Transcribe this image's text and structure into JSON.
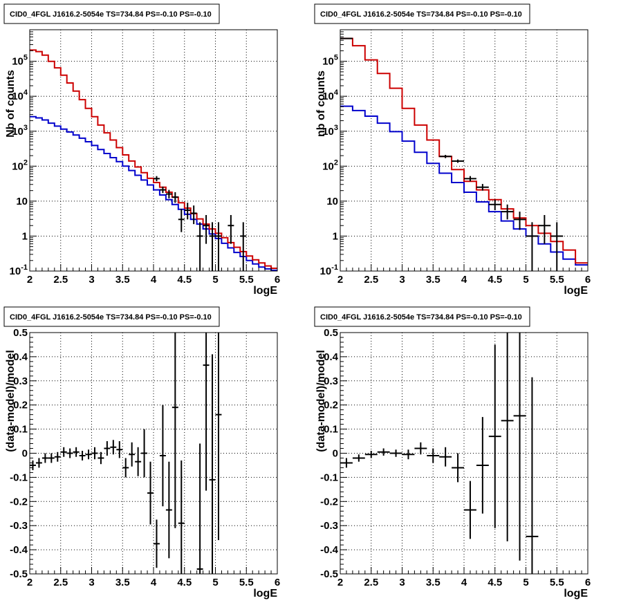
{
  "chart_data": [
    {
      "type": "histogram",
      "title": "CID0_4FGL J1616.2-5054e TS=734.84 PS=-0.10 PS=-0.10",
      "xlabel": "logE",
      "ylabel": "Nb of counts",
      "xlim": [
        2,
        6
      ],
      "ylim": [
        0.1,
        800000
      ],
      "ylog": true,
      "grid": true,
      "xticks": [
        "2",
        "2.5",
        "3",
        "3.5",
        "4",
        "4.5",
        "5",
        "5.5",
        "6"
      ],
      "yticks": [
        "10^-1",
        "1",
        "10",
        "10^2",
        "10^3",
        "10^4",
        "10^5"
      ],
      "bin_edges": [
        2.0,
        2.1,
        2.2,
        2.3,
        2.4,
        2.5,
        2.6,
        2.7,
        2.8,
        2.9,
        3.0,
        3.1,
        3.2,
        3.3,
        3.4,
        3.5,
        3.6,
        3.7,
        3.8,
        3.9,
        4.0,
        4.1,
        4.2,
        4.3,
        4.4,
        4.5,
        4.6,
        4.7,
        4.8,
        4.9,
        5.0,
        5.1,
        5.2,
        5.3,
        5.4,
        5.5,
        5.6,
        5.7,
        5.8,
        5.9,
        6.0
      ],
      "series": [
        {
          "color": "#0000cc",
          "values": [
            2600,
            2400,
            2100,
            1700,
            1400,
            1150,
            950,
            780,
            630,
            500,
            390,
            300,
            230,
            175,
            135,
            100,
            75,
            55,
            40,
            29,
            21,
            15,
            11,
            8,
            5.8,
            4.2,
            3.0,
            2.2,
            1.6,
            1.15,
            0.85,
            0.62,
            0.46,
            0.34,
            0.26,
            0.2,
            0.16,
            0.13,
            0.115,
            0.105
          ]
        },
        {
          "color": "#cc0000",
          "values": [
            210000,
            190000,
            150000,
            100000,
            65000,
            40000,
            24000,
            14000,
            8000,
            4500,
            2600,
            1500,
            900,
            560,
            340,
            210,
            140,
            95,
            65,
            45,
            34,
            25,
            18,
            13,
            9,
            6.3,
            4.4,
            3.1,
            2.2,
            1.6,
            1.2,
            0.9,
            0.65,
            0.48,
            0.36,
            0.27,
            0.21,
            0.17,
            0.14,
            0.12
          ]
        }
      ],
      "data_points": [
        {
          "x": 4.05,
          "y": 44,
          "lo": 37,
          "hi": 52
        },
        {
          "x": 4.15,
          "y": 21,
          "lo": 17,
          "hi": 26
        },
        {
          "x": 4.25,
          "y": 16,
          "lo": 12,
          "hi": 21
        },
        {
          "x": 4.35,
          "y": 13,
          "lo": 9,
          "hi": 18
        },
        {
          "x": 4.45,
          "y": 3,
          "lo": 1.3,
          "hi": 6
        },
        {
          "x": 4.55,
          "y": 5.5,
          "lo": 3.0,
          "hi": 9
        },
        {
          "x": 4.65,
          "y": 4.5,
          "lo": 2.2,
          "hi": 7.5
        },
        {
          "x": 4.75,
          "y": 1,
          "lo": 0.1,
          "hi": 2.5
        },
        {
          "x": 4.85,
          "y": 2,
          "lo": 0.6,
          "hi": 4
        },
        {
          "x": 4.95,
          "y": 1,
          "lo": 0.1,
          "hi": 2.5
        },
        {
          "x": 5.05,
          "y": 1,
          "lo": 0.1,
          "hi": 2.5
        },
        {
          "x": 5.25,
          "y": 2,
          "lo": 0.6,
          "hi": 4
        },
        {
          "x": 5.45,
          "y": 1,
          "lo": 0.1,
          "hi": 2.5
        }
      ]
    },
    {
      "type": "histogram",
      "title": "CID0_4FGL J1616.2-5054e TS=734.84 PS=-0.10 PS=-0.10",
      "xlabel": "logE",
      "ylabel": "nb of counts",
      "xlim": [
        2,
        6
      ],
      "ylim": [
        0.1,
        800000
      ],
      "ylog": true,
      "grid": true,
      "xticks": [
        "2",
        "2.5",
        "3",
        "3.5",
        "4",
        "4.5",
        "5",
        "5.5",
        "6"
      ],
      "yticks": [
        "10^-1",
        "1",
        "10",
        "10^2",
        "10^3",
        "10^4",
        "10^5"
      ],
      "bin_edges": [
        2.0,
        2.2,
        2.4,
        2.6,
        2.8,
        3.0,
        3.2,
        3.4,
        3.6,
        3.8,
        4.0,
        4.2,
        4.4,
        4.6,
        4.8,
        5.0,
        5.2,
        5.4,
        5.6,
        5.8,
        6.0
      ],
      "series": [
        {
          "color": "#0000cc",
          "values": [
            5200,
            3900,
            2700,
            1700,
            970,
            520,
            250,
            120,
            63,
            34,
            18,
            9.5,
            5.0,
            2.7,
            1.6,
            1.0,
            0.6,
            0.35,
            0.22,
            0.15
          ]
        },
        {
          "color": "#cc0000",
          "values": [
            450000,
            280000,
            110000,
            45000,
            17000,
            4500,
            1500,
            560,
            190,
            80,
            37,
            21,
            11,
            6.0,
            3.3,
            2.0,
            1.2,
            0.7,
            0.4,
            0.17
          ]
        }
      ],
      "data_points": [
        {
          "x": 2.1,
          "y": 450000,
          "lo": 440000,
          "hi": 460000
        },
        {
          "x": 3.7,
          "y": 190,
          "lo": 170,
          "hi": 210
        },
        {
          "x": 3.9,
          "y": 140,
          "lo": 125,
          "hi": 155
        },
        {
          "x": 4.1,
          "y": 44,
          "lo": 37,
          "hi": 52
        },
        {
          "x": 4.3,
          "y": 25,
          "lo": 20,
          "hi": 31
        },
        {
          "x": 4.5,
          "y": 8,
          "lo": 5.5,
          "hi": 11
        },
        {
          "x": 4.7,
          "y": 5,
          "lo": 3,
          "hi": 8
        },
        {
          "x": 4.9,
          "y": 3,
          "lo": 1.5,
          "hi": 5
        },
        {
          "x": 5.1,
          "y": 1,
          "lo": 0.1,
          "hi": 2.5
        },
        {
          "x": 5.3,
          "y": 2,
          "lo": 0.6,
          "hi": 4
        },
        {
          "x": 5.5,
          "y": 1,
          "lo": 0.1,
          "hi": 2.5
        }
      ]
    },
    {
      "type": "scatter",
      "title": "CID0_4FGL J1616.2-5054e TS=734.84 PS=-0.10 PS=-0.10",
      "xlabel": "logE",
      "ylabel": "(data-model)/model",
      "xlim": [
        2,
        6
      ],
      "ylim": [
        -0.5,
        0.5
      ],
      "ylog": false,
      "grid": true,
      "xticks": [
        "2",
        "2.5",
        "3",
        "3.5",
        "4",
        "4.5",
        "5",
        "5.5",
        "6"
      ],
      "yticks": [
        "-0.5",
        "-0.4",
        "-0.3",
        "-0.2",
        "-0.1",
        "0",
        "0.1",
        "0.2",
        "0.3",
        "0.4",
        "0.5"
      ],
      "half_width": 0.05,
      "points": [
        {
          "x": 2.05,
          "y": -0.05,
          "err": 0.02
        },
        {
          "x": 2.15,
          "y": -0.04,
          "err": 0.02
        },
        {
          "x": 2.25,
          "y": -0.02,
          "err": 0.02
        },
        {
          "x": 2.35,
          "y": -0.02,
          "err": 0.02
        },
        {
          "x": 2.45,
          "y": -0.015,
          "err": 0.02
        },
        {
          "x": 2.55,
          "y": 0.005,
          "err": 0.02
        },
        {
          "x": 2.65,
          "y": 0.0,
          "err": 0.02
        },
        {
          "x": 2.75,
          "y": 0.005,
          "err": 0.02
        },
        {
          "x": 2.85,
          "y": -0.01,
          "err": 0.02
        },
        {
          "x": 2.95,
          "y": -0.005,
          "err": 0.02
        },
        {
          "x": 3.05,
          "y": 0.0,
          "err": 0.025
        },
        {
          "x": 3.15,
          "y": -0.02,
          "err": 0.025
        },
        {
          "x": 3.25,
          "y": 0.02,
          "err": 0.03
        },
        {
          "x": 3.35,
          "y": 0.025,
          "err": 0.03
        },
        {
          "x": 3.45,
          "y": 0.015,
          "err": 0.035
        },
        {
          "x": 3.55,
          "y": -0.06,
          "err": 0.04
        },
        {
          "x": 3.65,
          "y": -0.005,
          "err": 0.05
        },
        {
          "x": 3.75,
          "y": -0.035,
          "err": 0.06
        },
        {
          "x": 3.85,
          "y": 0.0,
          "err": 0.1
        },
        {
          "x": 3.95,
          "y": -0.165,
          "err": 0.13
        },
        {
          "x": 4.05,
          "y": -0.375,
          "err": 0.1
        },
        {
          "x": 4.15,
          "y": -0.01,
          "err": 0.21
        },
        {
          "x": 4.25,
          "y": -0.235,
          "err": 0.2
        },
        {
          "x": 4.35,
          "y": 0.19,
          "err": 0.5
        },
        {
          "x": 4.45,
          "y": -0.29,
          "err": 0.26
        },
        {
          "x": 4.75,
          "y": -0.48,
          "err": 0.52
        },
        {
          "x": 4.85,
          "y": 0.365,
          "err": 0.52
        },
        {
          "x": 4.95,
          "y": -0.11,
          "err": 0.52
        },
        {
          "x": 5.05,
          "y": 0.16,
          "err": 0.52
        }
      ]
    },
    {
      "type": "scatter",
      "title": "CID0_4FGL J1616.2-5054e TS=734.84 PS=-0.10 PS=-0.10",
      "xlabel": "logE",
      "ylabel": "(data-model)/model",
      "xlim": [
        2,
        6
      ],
      "ylim": [
        -0.5,
        0.5
      ],
      "ylog": false,
      "grid": true,
      "xticks": [
        "2",
        "2.5",
        "3",
        "3.5",
        "4",
        "4.5",
        "5",
        "5.5",
        "6"
      ],
      "yticks": [
        "-0.5",
        "-0.4",
        "-0.3",
        "-0.2",
        "-0.1",
        "0",
        "0.1",
        "0.2",
        "0.3",
        "0.4",
        "0.5"
      ],
      "half_width": 0.1,
      "points": [
        {
          "x": 2.1,
          "y": -0.04,
          "err": 0.02
        },
        {
          "x": 2.3,
          "y": -0.02,
          "err": 0.015
        },
        {
          "x": 2.5,
          "y": -0.005,
          "err": 0.015
        },
        {
          "x": 2.7,
          "y": 0.005,
          "err": 0.015
        },
        {
          "x": 2.9,
          "y": 0.0,
          "err": 0.015
        },
        {
          "x": 3.1,
          "y": -0.005,
          "err": 0.02
        },
        {
          "x": 3.3,
          "y": 0.02,
          "err": 0.025
        },
        {
          "x": 3.5,
          "y": -0.01,
          "err": 0.03
        },
        {
          "x": 3.7,
          "y": -0.015,
          "err": 0.04
        },
        {
          "x": 3.9,
          "y": -0.06,
          "err": 0.06
        },
        {
          "x": 4.1,
          "y": -0.235,
          "err": 0.12
        },
        {
          "x": 4.3,
          "y": -0.05,
          "err": 0.2
        },
        {
          "x": 4.5,
          "y": 0.07,
          "err": 0.38
        },
        {
          "x": 4.7,
          "y": 0.135,
          "err": 0.5
        },
        {
          "x": 4.9,
          "y": 0.155,
          "err": 0.6
        },
        {
          "x": 5.1,
          "y": -0.345,
          "err": 0.66
        }
      ]
    }
  ]
}
